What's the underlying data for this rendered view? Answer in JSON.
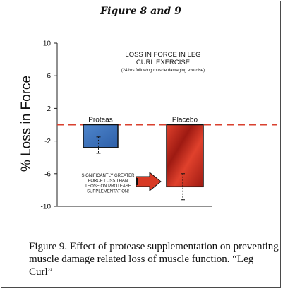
{
  "header": {
    "title": "Figure 8 and 9"
  },
  "colors": {
    "reference_line": "#d9412f",
    "proteas_light": "#4f86cc",
    "proteas_dark": "#2d5fa8",
    "placebo_light": "#e0412c",
    "placebo_dark": "#9e1a12",
    "arrow": "#d83a24"
  },
  "chart_data": {
    "type": "bar",
    "title": "LOSS IN FORCE IN LEG CURL EXERCISE",
    "subtitle": "(24 hrs following muscle damaging exercise)",
    "ylabel": "% Loss in Force",
    "xlabel": "",
    "ylim": [
      -10,
      10
    ],
    "yticks": [
      10,
      6,
      2,
      -2,
      -6,
      -10
    ],
    "categories": [
      "Proteas",
      "Placebo"
    ],
    "values": [
      -2.8,
      -7.6
    ],
    "error_bars": [
      {
        "low": -3.5,
        "high": -1.5
      },
      {
        "low": -9.2,
        "high": -6.0
      }
    ],
    "reference_line": 0,
    "grid": false,
    "annotation": "SIGNIFICANTLY GREATER FORCE  LOSS THAN THOSE ON PROTEASE SUPPLEMENTATION!"
  },
  "caption": "Figure 9. Effect of protease supplementation on preventing muscle damage related loss of muscle function. “Leg Curl”"
}
